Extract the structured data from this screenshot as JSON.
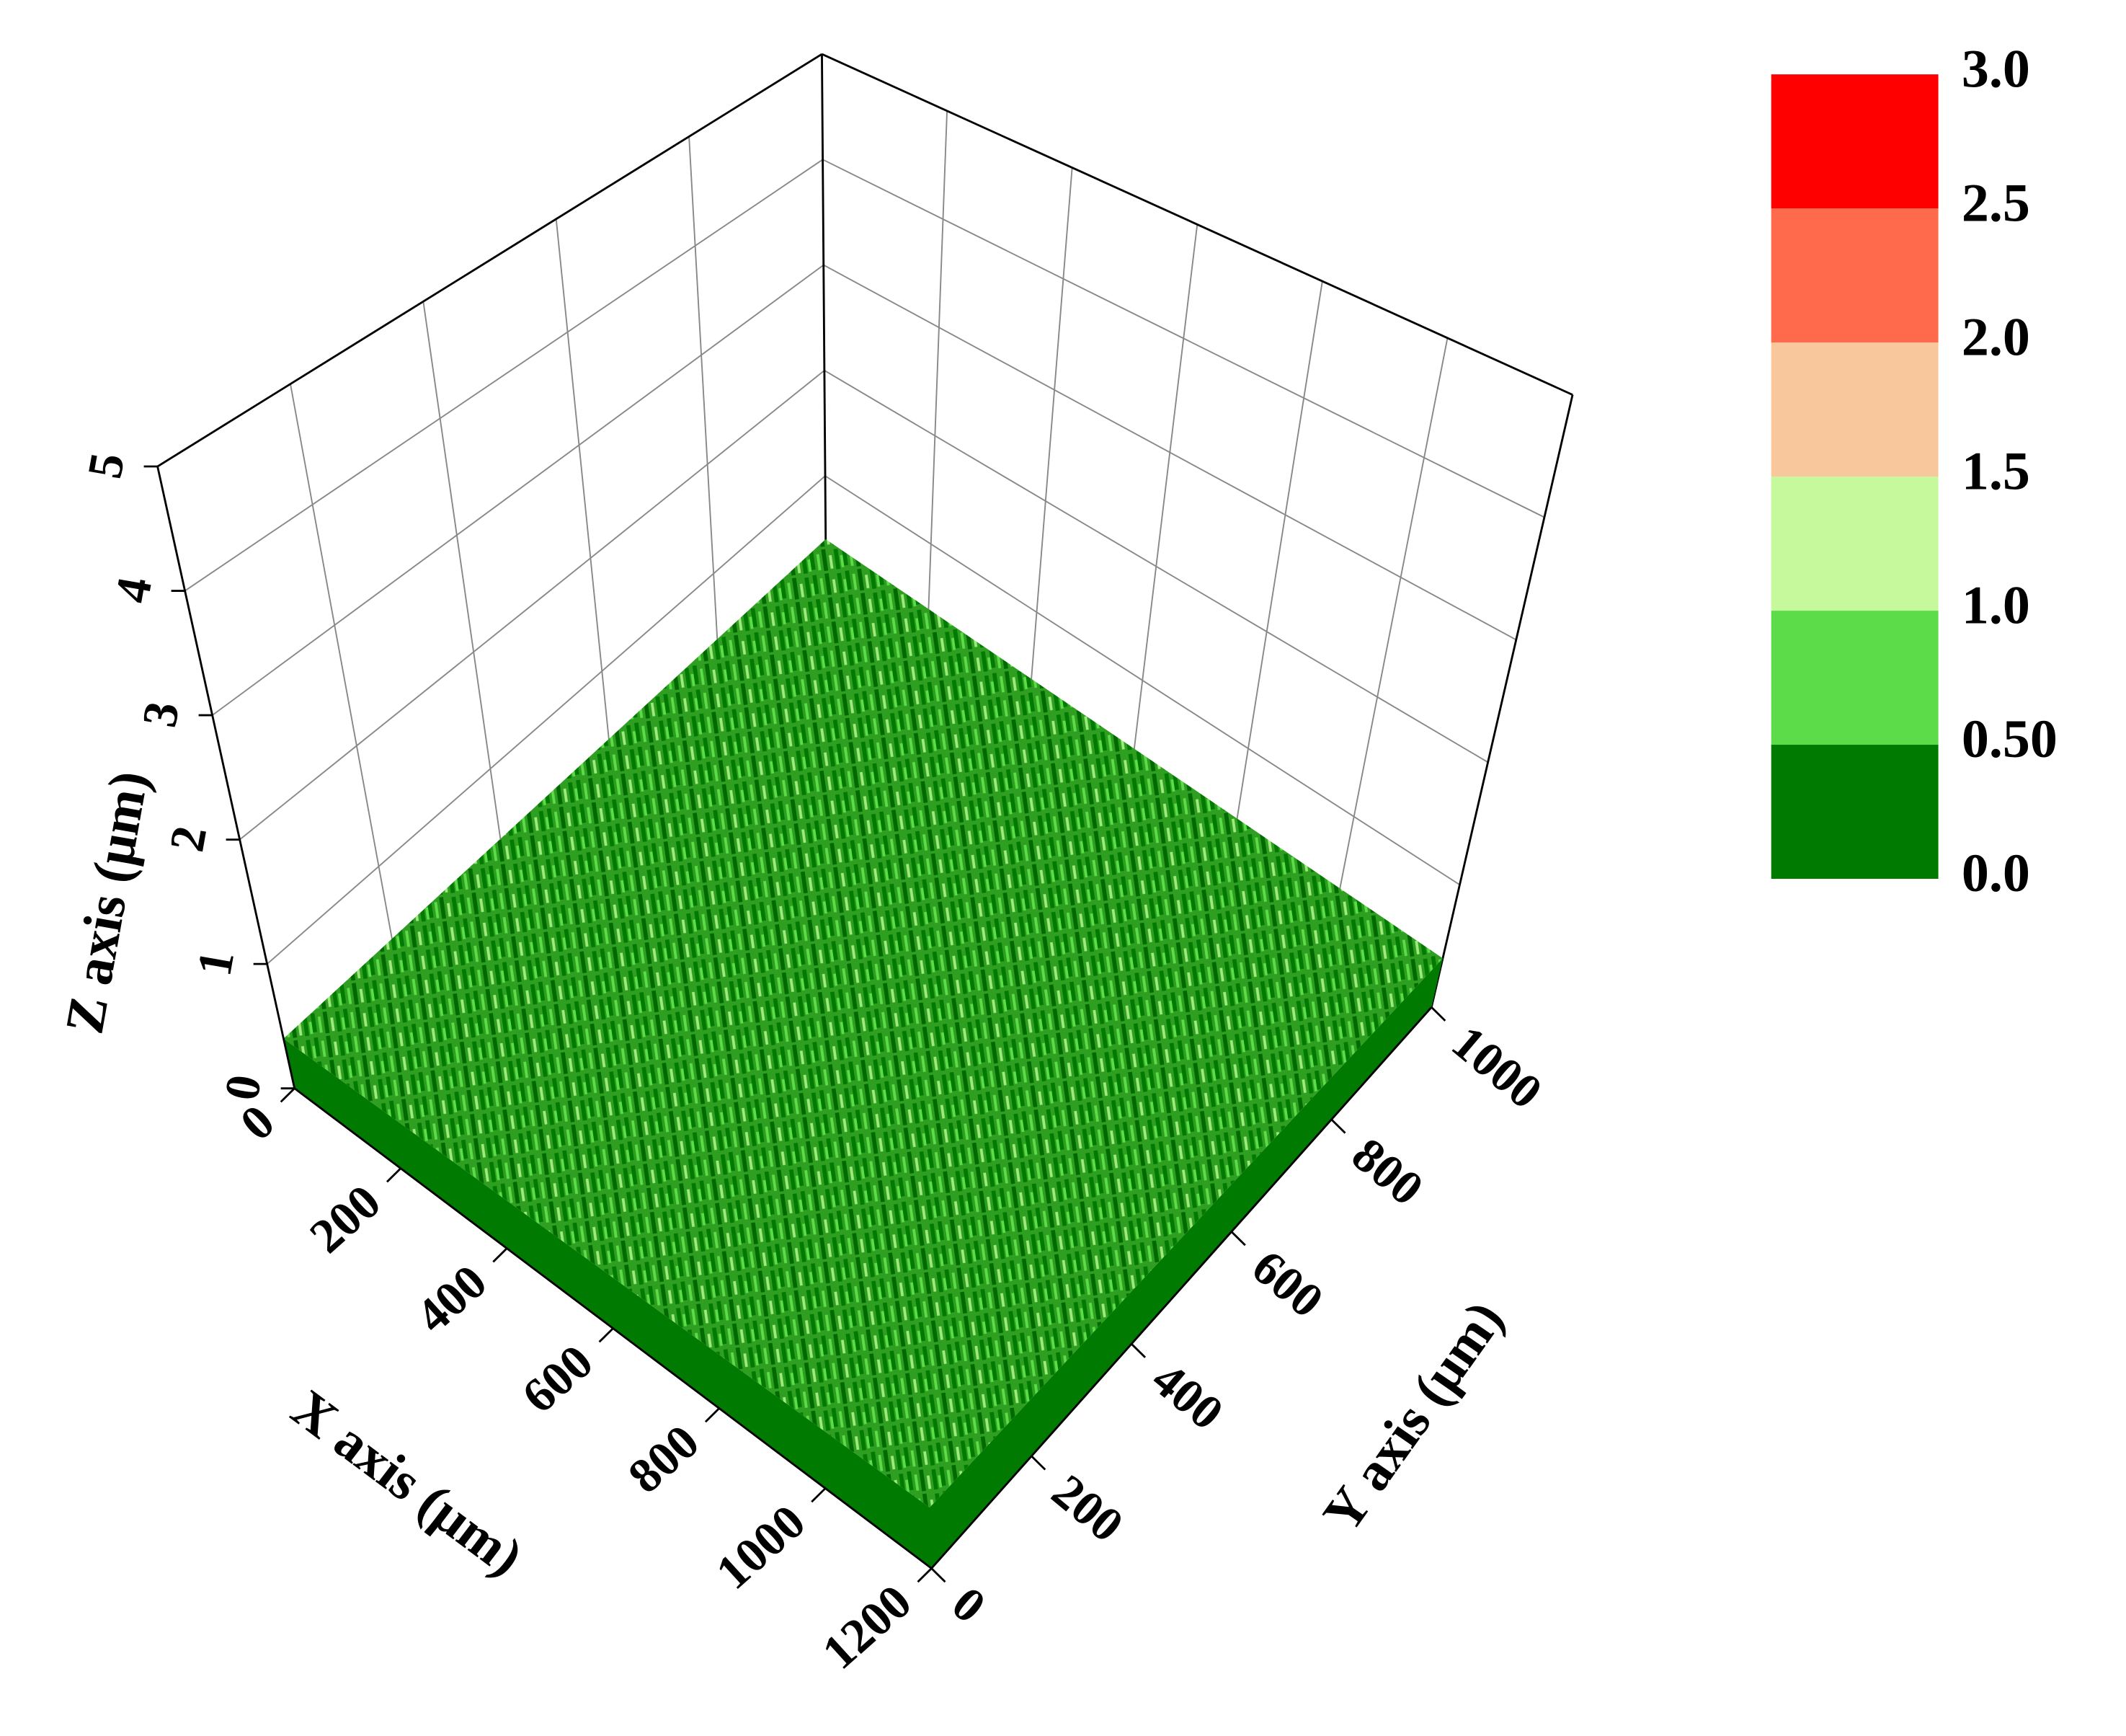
{
  "chart_data": {
    "type": "surface3d",
    "x_label": "X axis (μm)",
    "y_label": "Y axis (μm)",
    "z_label": "Z axis (μm)",
    "xlim": [
      0,
      1200
    ],
    "xticks": [
      0,
      200,
      400,
      600,
      800,
      1000,
      1200
    ],
    "ylim": [
      0,
      1000
    ],
    "yticks": [
      0,
      200,
      400,
      600,
      800,
      1000
    ],
    "zlim": [
      0,
      5
    ],
    "zticks": [
      0,
      1,
      2,
      3,
      4,
      5
    ],
    "grid": true,
    "colorbar": {
      "levels": [
        {
          "value": 0,
          "label": "0.0"
        },
        {
          "value": 0.5,
          "label": "0.50"
        },
        {
          "value": 1,
          "label": "1.0"
        },
        1.5,
        {
          "value": 2,
          "label": "2.0"
        },
        2.5,
        {
          "value": 3,
          "label": "3.0"
        }
      ],
      "colors": [
        "#007a00",
        "#5cdc48",
        "#c6f89c",
        "#f8c89c",
        "#ff6a4c",
        "#ff0000"
      ]
    }
  }
}
